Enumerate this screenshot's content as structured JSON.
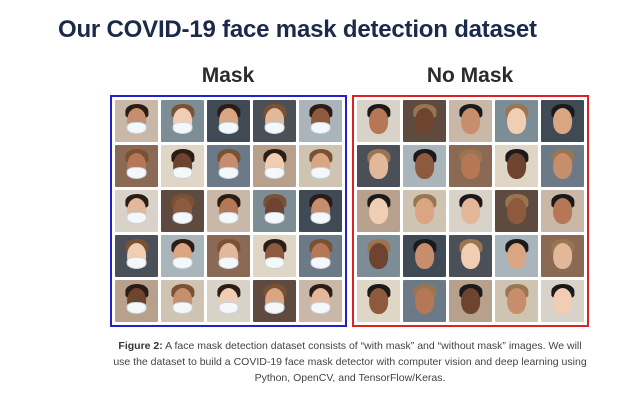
{
  "page": {
    "title": "Our COVID-19 face mask detection dataset"
  },
  "panels": {
    "mask": {
      "label": "Mask",
      "border_color": "#2222cc"
    },
    "no_mask": {
      "label": "No Mask",
      "border_color": "#dd2222"
    }
  },
  "caption": {
    "prefix": "Figure 2:",
    "text": "A face mask detection dataset consists of “with mask” and “without mask” images. We will use the dataset to build a COVID-19 face mask detector with computer vision and deep learning using Python, OpenCV, and TensorFlow/Keras."
  }
}
